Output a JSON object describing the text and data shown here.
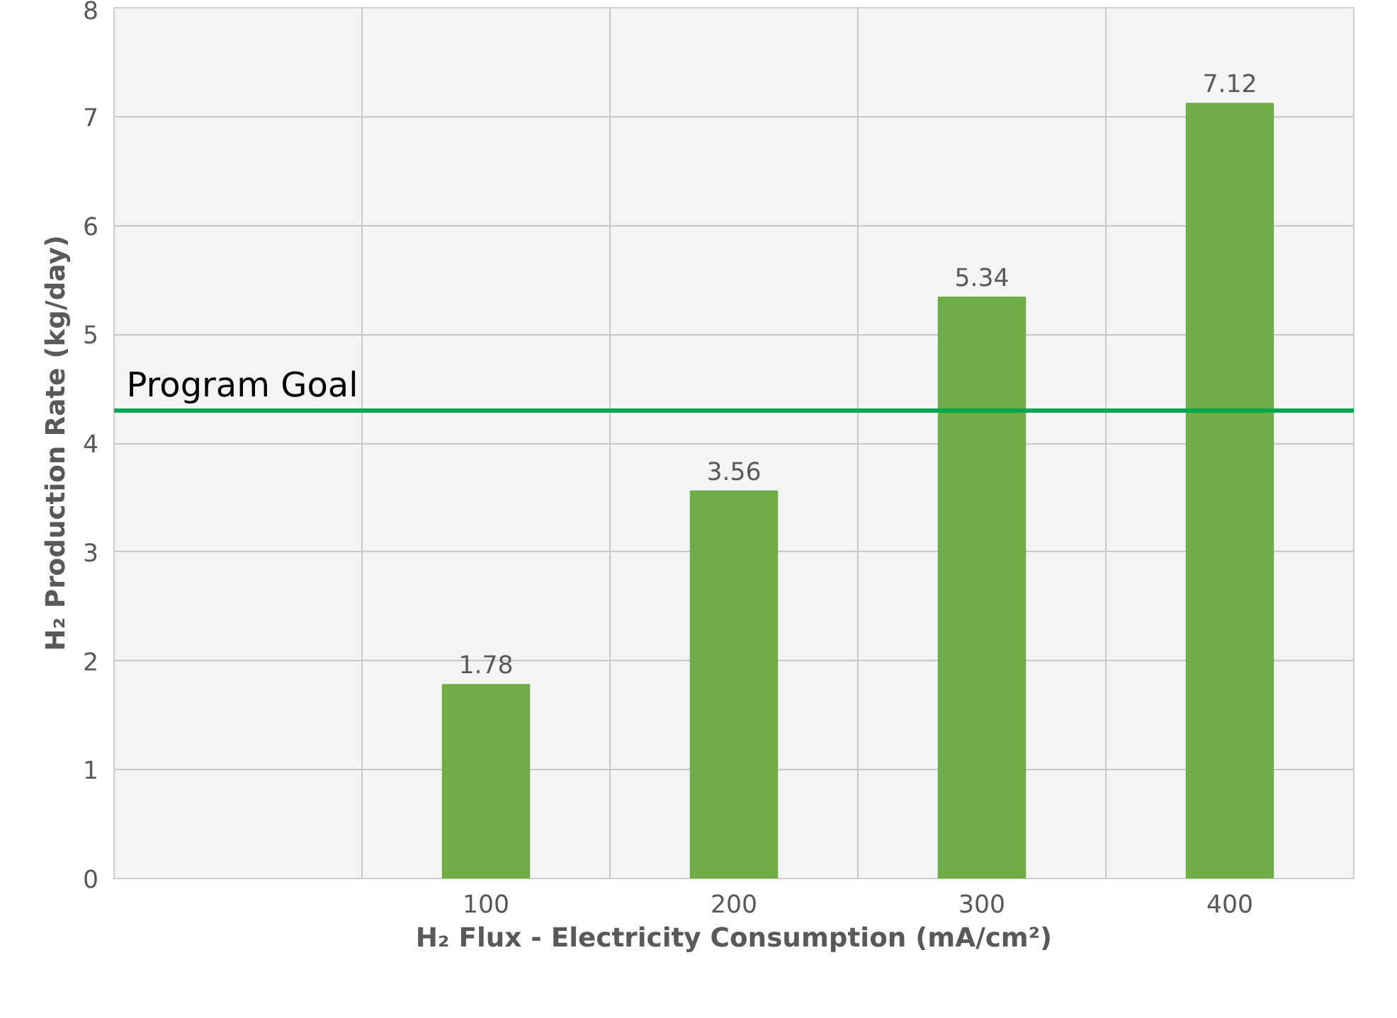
{
  "chart_data": {
    "type": "bar",
    "xlabel": "H₂ Flux - Electricity Consumption (mA/cm²)",
    "ylabel": "H₂ Production Rate (kg/day)",
    "categories": [
      null,
      "100",
      "200",
      "300",
      "400"
    ],
    "values": [
      null,
      1.78,
      3.56,
      5.34,
      7.12
    ],
    "color": "#70ad47",
    "data_labels": true,
    "ylim": [
      0,
      8
    ],
    "yticks": [
      0,
      1,
      2,
      3,
      4,
      5,
      6,
      7,
      8
    ],
    "grid": true,
    "ref_lines": [
      {
        "axis": "y",
        "value": 4.3,
        "label": "Program Goal",
        "color": "#00a550",
        "line_style": "solid"
      }
    ]
  }
}
